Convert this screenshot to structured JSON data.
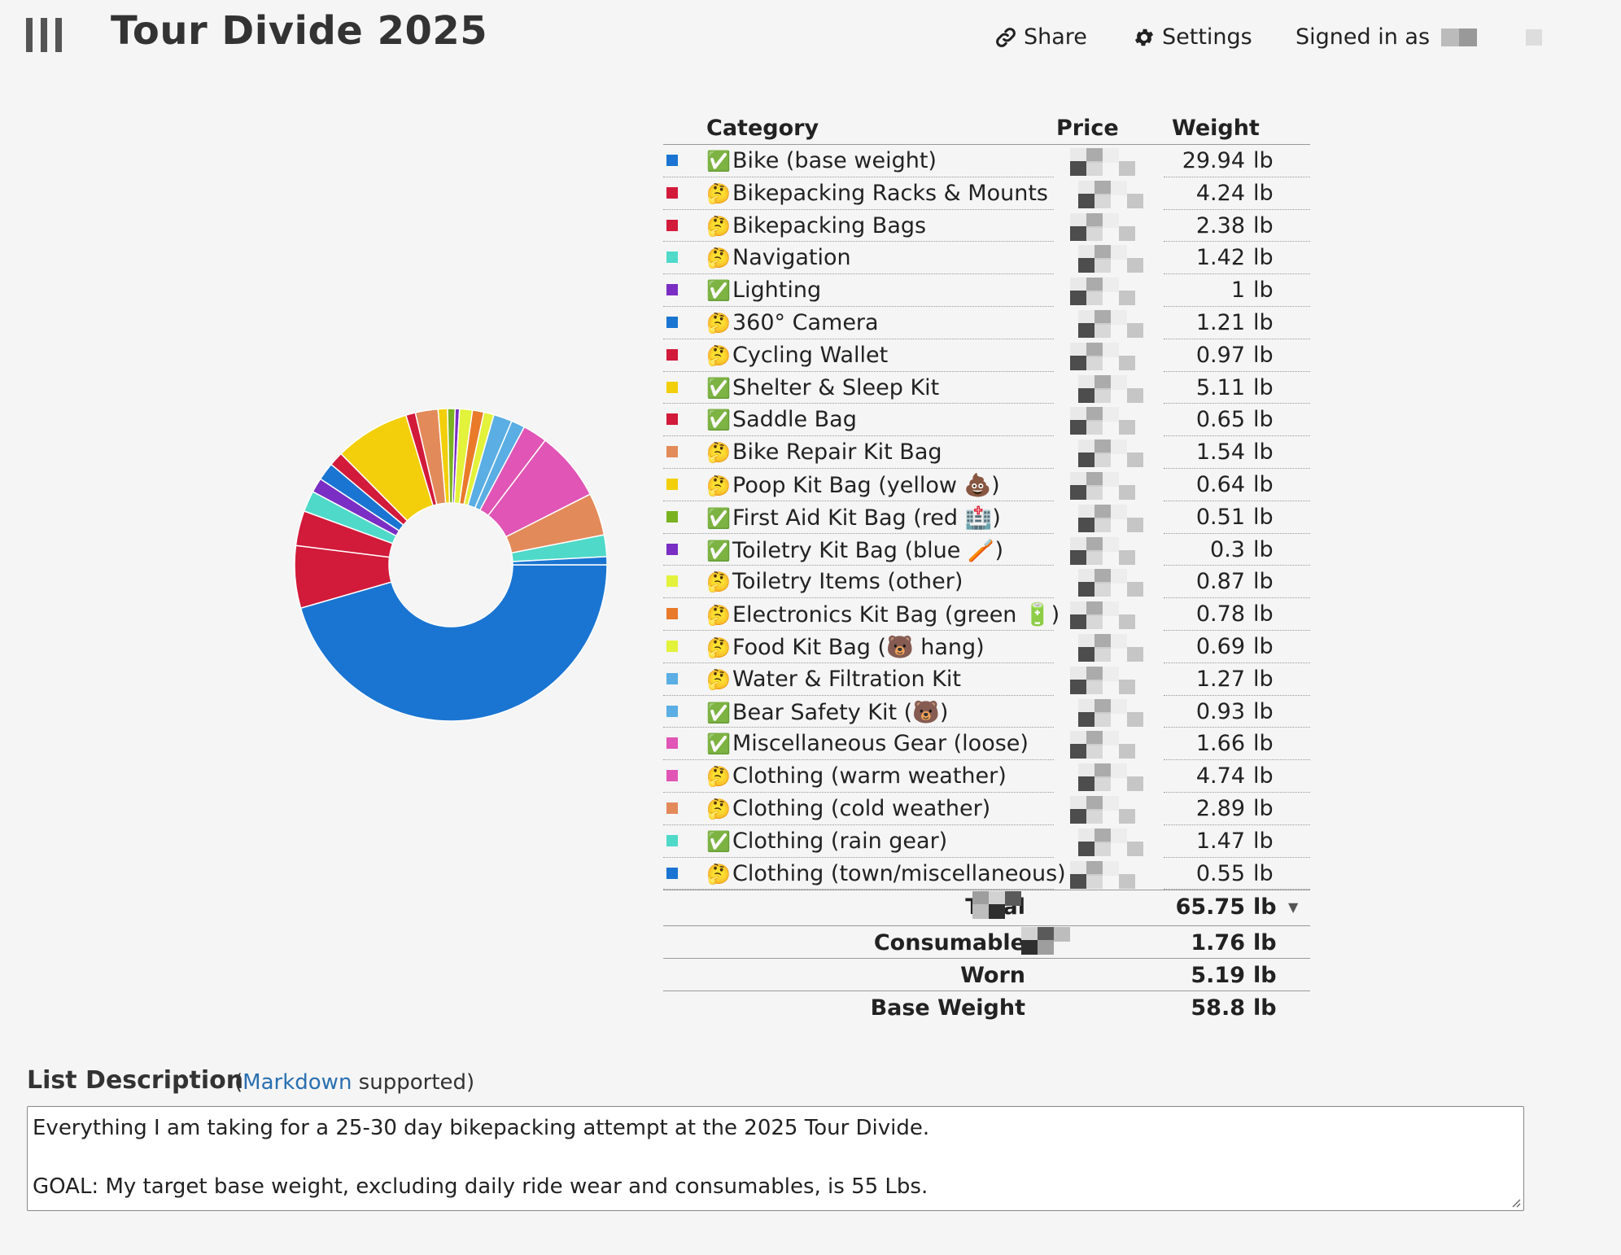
{
  "header": {
    "title": "Tour Divide 2025",
    "share_label": "Share",
    "settings_label": "Settings",
    "signed_in_label": "Signed in as"
  },
  "table": {
    "col_category": "Category",
    "col_price": "Price",
    "col_weight": "Weight",
    "rows": [
      {
        "mark": "✅",
        "name": "Bike (base weight)",
        "weight": "29.94",
        "unit": "lb",
        "color": "#1a75d2"
      },
      {
        "mark": "🤔",
        "name": "Bikepacking Racks & Mounts",
        "weight": "4.24",
        "unit": "lb",
        "color": "#d21a3a"
      },
      {
        "mark": "🤔",
        "name": "Bikepacking Bags",
        "weight": "2.38",
        "unit": "lb",
        "color": "#d21a3a"
      },
      {
        "mark": "🤔",
        "name": "Navigation",
        "weight": "1.42",
        "unit": "lb",
        "color": "#4fd9c9"
      },
      {
        "mark": "✅",
        "name": "Lighting",
        "weight": "1",
        "unit": "lb",
        "color": "#7a2ec4"
      },
      {
        "mark": "🤔",
        "name": "360° Camera",
        "weight": "1.21",
        "unit": "lb",
        "color": "#1a75d2"
      },
      {
        "mark": "🤔",
        "name": "Cycling Wallet",
        "weight": "0.97",
        "unit": "lb",
        "color": "#d21a3a"
      },
      {
        "mark": "✅",
        "name": "Shelter & Sleep Kit",
        "weight": "5.11",
        "unit": "lb",
        "color": "#f2cf0a"
      },
      {
        "mark": "✅",
        "name": "Saddle Bag",
        "weight": "0.65",
        "unit": "lb",
        "color": "#d21a3a"
      },
      {
        "mark": "🤔",
        "name": "Bike Repair Kit Bag",
        "weight": "1.54",
        "unit": "lb",
        "color": "#e38a5a"
      },
      {
        "mark": "🤔",
        "name": "Poop Kit Bag (yellow 💩)",
        "weight": "0.64",
        "unit": "lb",
        "color": "#f2cf0a"
      },
      {
        "mark": "✅",
        "name": "First Aid Kit Bag (red 🏥)",
        "weight": "0.51",
        "unit": "lb",
        "color": "#79b321"
      },
      {
        "mark": "✅",
        "name": "Toiletry Kit Bag (blue 🪥)",
        "weight": "0.3",
        "unit": "lb",
        "color": "#7a2ec4"
      },
      {
        "mark": "🤔",
        "name": "Toiletry Items (other)",
        "weight": "0.87",
        "unit": "lb",
        "color": "#e3f23a"
      },
      {
        "mark": "🤔",
        "name": "Electronics Kit Bag (green 🔋)",
        "weight": "0.78",
        "unit": "lb",
        "color": "#e97a2a"
      },
      {
        "mark": "🤔",
        "name": "Food Kit Bag (🐻 hang)",
        "weight": "0.69",
        "unit": "lb",
        "color": "#e3f23a"
      },
      {
        "mark": "🤔",
        "name": "Water & Filtration Kit",
        "weight": "1.27",
        "unit": "lb",
        "color": "#5aaee3"
      },
      {
        "mark": "✅",
        "name": "Bear Safety Kit (🐻)",
        "weight": "0.93",
        "unit": "lb",
        "color": "#5aaee3"
      },
      {
        "mark": "✅",
        "name": "Miscellaneous Gear (loose)",
        "weight": "1.66",
        "unit": "lb",
        "color": "#e055b5"
      },
      {
        "mark": "🤔",
        "name": "Clothing (warm weather)",
        "weight": "4.74",
        "unit": "lb",
        "color": "#e055b5"
      },
      {
        "mark": "🤔",
        "name": "Clothing (cold weather)",
        "weight": "2.89",
        "unit": "lb",
        "color": "#e38a5a"
      },
      {
        "mark": "✅",
        "name": "Clothing (rain gear)",
        "weight": "1.47",
        "unit": "lb",
        "color": "#4fd9c9"
      },
      {
        "mark": "🤔",
        "name": "Clothing (town/miscellaneous)",
        "weight": "0.55",
        "unit": "lb",
        "color": "#1a75d2"
      }
    ],
    "summary": [
      {
        "label": "Total",
        "value": "65.75",
        "unit": "lb"
      },
      {
        "label": "Consumable",
        "value": "1.76",
        "unit": "lb"
      },
      {
        "label": "Worn",
        "value": "5.19",
        "unit": "lb"
      },
      {
        "label": "Base Weight",
        "value": "58.8",
        "unit": "lb"
      }
    ]
  },
  "description": {
    "title": "List Description",
    "note_open": "(",
    "note_link": "Markdown",
    "note_rest": " supported)",
    "line1": "Everything I am taking for a 25-30 day bikepacking attempt at the 2025 Tour Divide.",
    "line2": "GOAL: My target base weight, excluding daily ride wear and consumables, is 55 Lbs."
  },
  "icons": {
    "menu": "hamburger-menu-icon",
    "share": "link-icon",
    "settings": "gear-icon",
    "total_dropdown": "caret-down-icon"
  },
  "chart_data": {
    "type": "pie",
    "style": "donut",
    "labels": [
      "Bike (base weight)",
      "Bikepacking Racks & Mounts",
      "Bikepacking Bags",
      "Navigation",
      "Lighting",
      "360° Camera",
      "Cycling Wallet",
      "Shelter & Sleep Kit",
      "Saddle Bag",
      "Bike Repair Kit Bag",
      "Poop Kit Bag (yellow 💩)",
      "First Aid Kit Bag (red 🏥)",
      "Toiletry Kit Bag (blue 🪥)",
      "Toiletry Items (other)",
      "Electronics Kit Bag (green 🔋)",
      "Food Kit Bag (🐻 hang)",
      "Water & Filtration Kit",
      "Bear Safety Kit (🐻)",
      "Miscellaneous Gear (loose)",
      "Clothing (warm weather)",
      "Clothing (cold weather)",
      "Clothing (rain gear)",
      "Clothing (town/miscellaneous)"
    ],
    "values": [
      29.94,
      4.24,
      2.38,
      1.42,
      1,
      1.21,
      0.97,
      5.11,
      0.65,
      1.54,
      0.64,
      0.51,
      0.3,
      0.87,
      0.78,
      0.69,
      1.27,
      0.93,
      1.66,
      4.74,
      2.89,
      1.47,
      0.55
    ],
    "colors": [
      "#1a75d2",
      "#d21a3a",
      "#d21a3a",
      "#4fd9c9",
      "#7a2ec4",
      "#1a75d2",
      "#d21a3a",
      "#f2cf0a",
      "#d21a3a",
      "#e38a5a",
      "#f2cf0a",
      "#79b321",
      "#7a2ec4",
      "#e3f23a",
      "#e97a2a",
      "#e3f23a",
      "#5aaee3",
      "#5aaee3",
      "#e055b5",
      "#e055b5",
      "#e38a5a",
      "#4fd9c9",
      "#1a75d2"
    ]
  }
}
